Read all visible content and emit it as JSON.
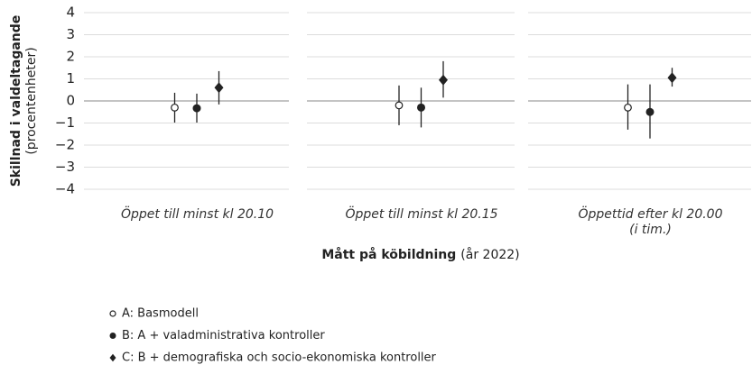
{
  "chart_data": {
    "type": "errorbar",
    "y_label": {
      "bold": "Skillnad i valdeltagande",
      "normal": "(procentenheter)"
    },
    "x_label": {
      "bold": "Mått på köbildning",
      "normal": "(år 2022)"
    },
    "categories": [
      "Öppet till minst kl 20.10",
      "Öppet till minst kl 20.15",
      "Öppettid efter kl 20.00 (i tim.)"
    ],
    "ylim": [
      -4,
      4
    ],
    "yticks": [
      {
        "value": -4,
        "label": "−4"
      },
      {
        "value": -3,
        "label": "−3"
      },
      {
        "value": -2,
        "label": "−2"
      },
      {
        "value": -1,
        "label": "−1"
      },
      0,
      1,
      2,
      3,
      4
    ],
    "grid": true,
    "series": [
      {
        "name": "A: Basmodell",
        "marker": "open-circle",
        "color": "#222222",
        "values": [
          -0.3,
          -0.2,
          -0.3
        ],
        "lower": [
          -0.98,
          -1.1,
          -1.3
        ],
        "upper": [
          0.37,
          0.7,
          0.75
        ]
      },
      {
        "name": "B: A + valadministrativa kontroller",
        "marker": "circle",
        "color": "#222222",
        "values": [
          -0.33,
          -0.3,
          -0.5
        ],
        "lower": [
          -0.98,
          -1.2,
          -1.7
        ],
        "upper": [
          0.33,
          0.6,
          0.75
        ]
      },
      {
        "name": "C: B + demografiska och socio-ekonomiska kontroller",
        "marker": "diamond",
        "color": "#222222",
        "values": [
          0.6,
          0.95,
          1.05
        ],
        "lower": [
          -0.16,
          0.15,
          0.65
        ],
        "upper": [
          1.35,
          1.8,
          1.5
        ]
      }
    ]
  }
}
